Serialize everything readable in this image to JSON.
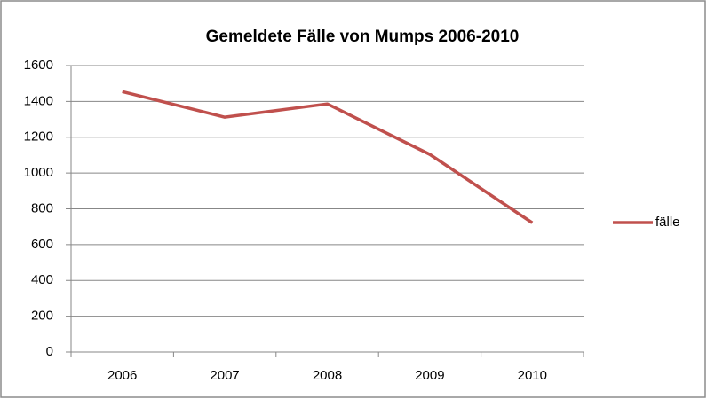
{
  "chart_data": {
    "type": "line",
    "title": "Gemeldete Fälle von Mumps 2006-2010",
    "categories": [
      "2006",
      "2007",
      "2008",
      "2009",
      "2010"
    ],
    "series": [
      {
        "name": "fälle",
        "color": "#c0504d",
        "values": [
          1455,
          1312,
          1386,
          1104,
          722
        ]
      }
    ],
    "ylim": [
      0,
      1600
    ],
    "yticks": [
      0,
      200,
      400,
      600,
      800,
      1000,
      1200,
      1400,
      1600
    ],
    "grid": true,
    "legend": "right"
  }
}
